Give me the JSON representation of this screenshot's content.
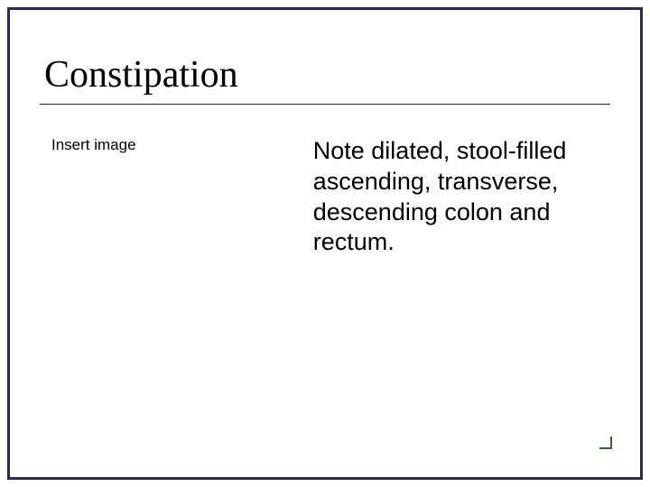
{
  "slide": {
    "title": "Constipation",
    "placeholder_label": "Insert image",
    "body_text": "Note dilated, stool-filled ascending, transverse, descending colon and rectum."
  },
  "style": {
    "border_color": "#2a2a5c",
    "accent_color": "#2a6b2a",
    "background_color": "#ffffff",
    "title_font": "Times New Roman",
    "title_fontsize": 42,
    "body_font": "Arial",
    "body_fontsize": 27,
    "placeholder_fontsize": 17
  }
}
